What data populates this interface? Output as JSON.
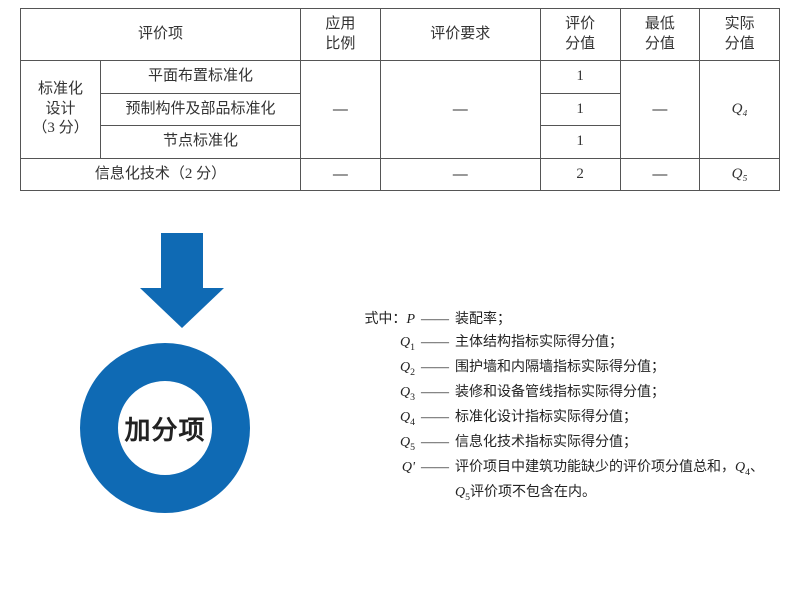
{
  "table": {
    "headers": {
      "eval_item": "评价项",
      "app_ratio_l1": "应用",
      "app_ratio_l2": "比例",
      "eval_req": "评价要求",
      "eval_score_l1": "评价",
      "eval_score_l2": "分值",
      "min_score_l1": "最低",
      "min_score_l2": "分值",
      "actual_score_l1": "实际",
      "actual_score_l2": "分值"
    },
    "std_group_l1": "标准化",
    "std_group_l2": "设计",
    "std_group_l3": "（3 分）",
    "std_row1": "平面布置标准化",
    "std_row2": "预制构件及部品标准化",
    "std_row3": "节点标准化",
    "std_score1": "1",
    "std_score2": "1",
    "std_score3": "1",
    "std_Q": "Q₄",
    "it_label": "信息化技术（2 分）",
    "it_score": "2",
    "it_Q": "Q₅",
    "dash": "—",
    "border_color": "#555555",
    "text_color": "#333333",
    "font_size": 15
  },
  "arrow": {
    "color": "#0f6ab4",
    "stem_w": 42,
    "stem_h": 55,
    "head_w": 84,
    "head_h": 40
  },
  "ring": {
    "label": "加分项",
    "color": "#0f6ab4",
    "outer_d": 170,
    "border_w": 38,
    "label_fontsize": 26,
    "label_weight": "bold"
  },
  "legend": {
    "prefix": "式中：",
    "sep": "——",
    "font_size": 14,
    "text_color": "#222222",
    "items": [
      {
        "sym_html": "<span class=\"italic\">P</span>",
        "def": "装配率；"
      },
      {
        "sym_html": "<span class=\"italic\">Q</span><span class=\"sub\">1</span>",
        "def": "主体结构指标实际得分值；"
      },
      {
        "sym_html": "<span class=\"italic\">Q</span><span class=\"sub\">2</span>",
        "def": "围护墙和内隔墙指标实际得分值；"
      },
      {
        "sym_html": "<span class=\"italic\">Q</span><span class=\"sub\">3</span>",
        "def": "装修和设备管线指标实际得分值；"
      },
      {
        "sym_html": "<span class=\"italic\">Q</span><span class=\"sub\">4</span>",
        "def": "标准化设计指标实际得分值；"
      },
      {
        "sym_html": "<span class=\"italic\">Q</span><span class=\"sub\">5</span>",
        "def": "信息化技术指标实际得分值；"
      },
      {
        "sym_html": "<span class=\"italic\">Q'</span>",
        "def": "评价项目中建筑功能缺少的评价项分值总和，<span class=\"italic\">Q</span><span class=\"sub\">4</span>、<span class=\"italic\">Q</span><span class=\"sub\">5</span>评价项不包含在内。"
      }
    ]
  }
}
